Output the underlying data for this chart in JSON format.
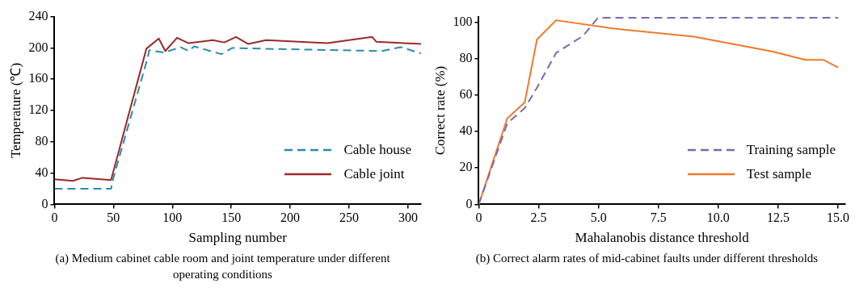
{
  "chart_data": [
    {
      "type": "line",
      "xlabel": "Sampling number",
      "ylabel": "Temperature (℃)",
      "xlim": [
        0,
        311
      ],
      "xticks": [
        0,
        50,
        100,
        150,
        200,
        250,
        300
      ],
      "ylim": [
        0,
        240
      ],
      "yticks": [
        0,
        40,
        80,
        120,
        160,
        200,
        240
      ],
      "grid": false,
      "legend": "bottom right",
      "annotations": [
        "(a) Medium cabinet cable room and joint temperature under different operating conditions"
      ],
      "series": [
        {
          "name": "Cable house",
          "color": "#2a8ca8",
          "line_style": "dashed",
          "x": [
            0,
            48,
            50,
            79,
            80.4,
            93,
            106.8,
            114,
            118.5,
            141.5,
            151,
            176,
            277.6,
            293.8,
            311
          ],
          "values": [
            20,
            20,
            34,
            187,
            197,
            194,
            201,
            196,
            202,
            192,
            200,
            199,
            196,
            201,
            193
          ]
        },
        {
          "name": "Cable joint",
          "color": "#9b2a2a",
          "line_style": "solid",
          "x": [
            0,
            15.7,
            23.8,
            48,
            78,
            88.5,
            94,
            104,
            113.8,
            134.5,
            144,
            154,
            164.5,
            179.5,
            231.5,
            269.5,
            273,
            311
          ],
          "values": [
            32,
            30,
            34,
            31,
            199,
            212,
            196,
            213,
            206,
            210,
            207,
            214,
            205,
            210,
            206,
            214,
            208,
            205
          ]
        }
      ]
    },
    {
      "type": "line",
      "xlabel": "Mahalanobis distance threshold",
      "ylabel": "Correct rate (%)",
      "xlim": [
        0,
        15.3
      ],
      "xticks": [
        0,
        {
          "value": 2.5,
          "label": "2.5"
        },
        {
          "value": 5,
          "label": "5.0"
        },
        {
          "value": 7.5,
          "label": "7.5"
        },
        {
          "value": 10,
          "label": "10.0"
        },
        {
          "value": 12.5,
          "label": "12.5"
        },
        {
          "value": 15,
          "label": "15.0"
        }
      ],
      "ylim": [
        0,
        103
      ],
      "yticks": [
        0,
        20,
        40,
        60,
        80,
        100
      ],
      "grid": false,
      "legend": "bottom right",
      "annotations": [
        "(b) Correct alarm rates of mid-cabinet faults under different thresholds"
      ],
      "series": [
        {
          "name": "Training sample",
          "color": "#7a6ab0",
          "line_style": "dashed",
          "x": [
            0,
            1.19,
            1.92,
            2.43,
            3.23,
            4.36,
            4.98,
            15
          ],
          "values": [
            0,
            44.4,
            52.8,
            64,
            83.1,
            92.5,
            102.4,
            102.4
          ]
        },
        {
          "name": "Test sample",
          "color": "#ee7a2a",
          "line_style": "solid",
          "x": [
            0,
            1.19,
            1.92,
            2.43,
            3.23,
            5.6,
            9,
            12.28,
            13.64,
            14.38,
            15
          ],
          "values": [
            0,
            47.2,
            55.9,
            90.4,
            101,
            96.5,
            92,
            83.8,
            79.3,
            79.3,
            75.1
          ]
        }
      ]
    }
  ]
}
